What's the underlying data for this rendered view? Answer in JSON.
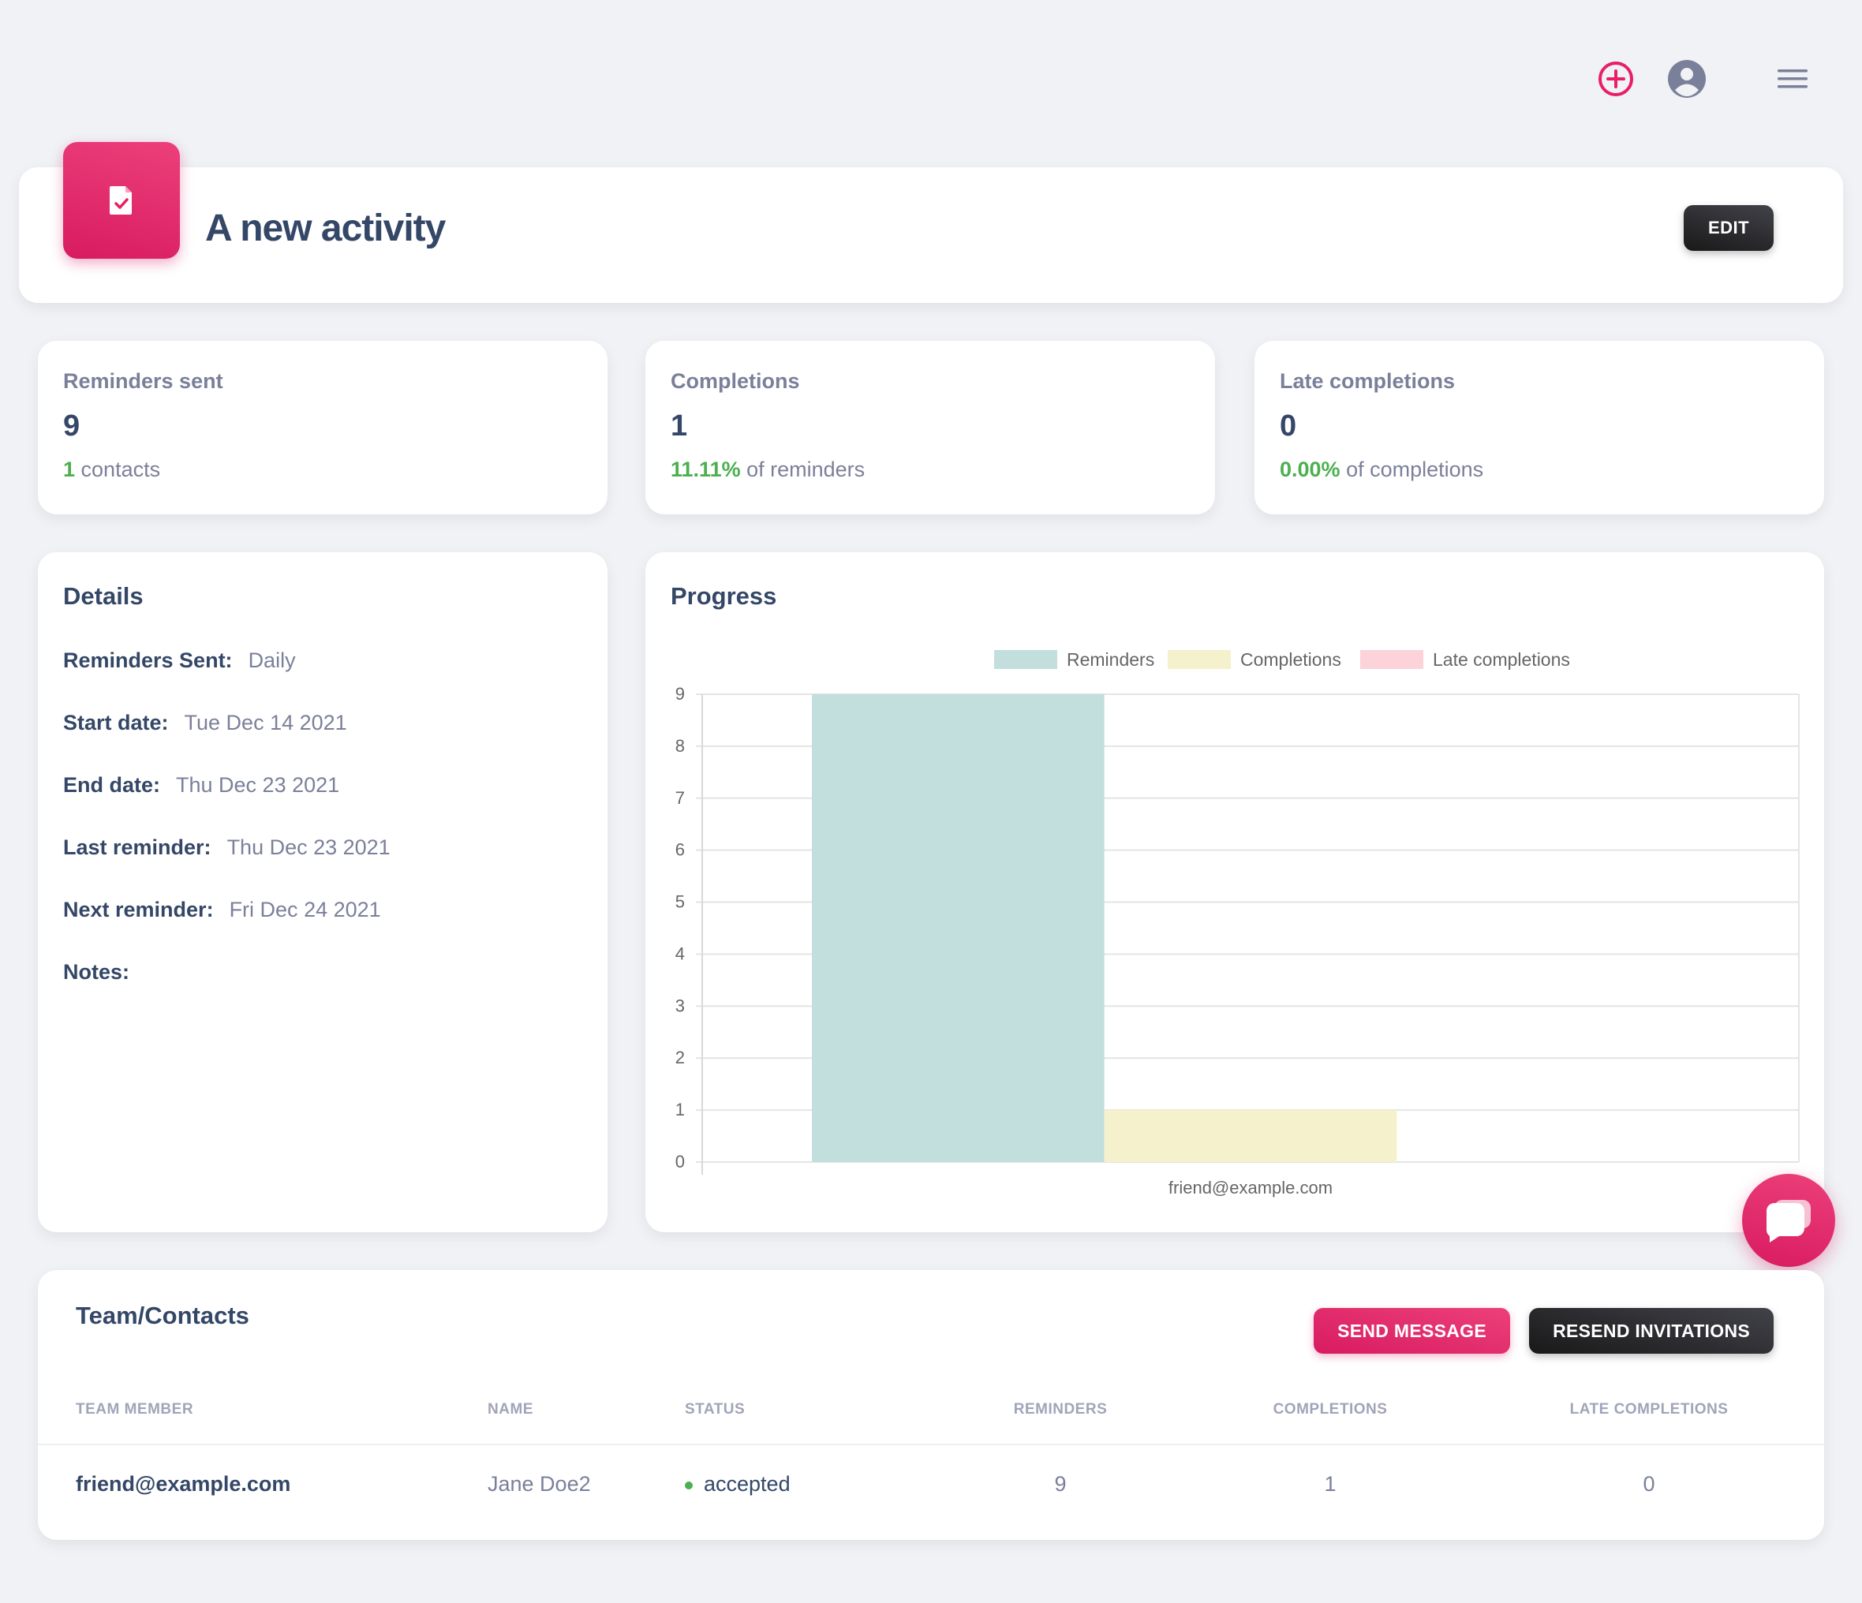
{
  "topbar": {
    "add_icon": "plus-circle-icon",
    "user_icon": "user-circle-icon",
    "menu_icon": "hamburger-menu-icon"
  },
  "header": {
    "icon": "file-check-icon",
    "title": "A new activity",
    "edit_label": "EDIT"
  },
  "stats": [
    {
      "label": "Reminders sent",
      "value": "9",
      "sub_highlight": "1",
      "sub_text": " contacts"
    },
    {
      "label": "Completions",
      "value": "1",
      "sub_highlight": "11.11%",
      "sub_text": " of reminders"
    },
    {
      "label": "Late completions",
      "value": "0",
      "sub_highlight": "0.00%",
      "sub_text": " of completions"
    }
  ],
  "details": {
    "title": "Details",
    "rows": [
      {
        "key": "Reminders Sent:",
        "value": "Daily"
      },
      {
        "key": "Start date:",
        "value": "Tue Dec 14 2021"
      },
      {
        "key": "End date:",
        "value": "Thu Dec 23 2021"
      },
      {
        "key": "Last reminder:",
        "value": "Thu Dec 23 2021"
      },
      {
        "key": "Next reminder:",
        "value": "Fri Dec 24 2021"
      },
      {
        "key": "Notes:",
        "value": ""
      }
    ]
  },
  "progress": {
    "title": "Progress"
  },
  "chart_data": {
    "type": "bar",
    "title": "",
    "categories": [
      "friend@example.com"
    ],
    "series": [
      {
        "name": "Reminders",
        "color": "#c2dfde",
        "values": [
          9
        ]
      },
      {
        "name": "Completions",
        "color": "#f5f1cc",
        "values": [
          1
        ]
      },
      {
        "name": "Late completions",
        "color": "#fcd3d9",
        "values": [
          0
        ]
      }
    ],
    "ylim": [
      0,
      9
    ],
    "yticks": [
      "0",
      "1",
      "2",
      "3",
      "4",
      "5",
      "6",
      "7",
      "8",
      "9"
    ],
    "grid": true,
    "legend": "top"
  },
  "chat": {
    "icon": "chat-bubble-icon"
  },
  "team": {
    "title": "Team/Contacts",
    "send_label": "SEND MESSAGE",
    "resend_label": "RESEND INVITATIONS",
    "columns": [
      "TEAM MEMBER",
      "NAME",
      "STATUS",
      "REMINDERS",
      "COMPLETIONS",
      "LATE COMPLETIONS"
    ],
    "rows": [
      {
        "member": "friend@example.com",
        "name": "Jane Doe2",
        "status": "accepted",
        "reminders": "9",
        "completions": "1",
        "late": "0"
      }
    ]
  },
  "colors": {
    "pink": "#d81b60",
    "dark": "#191919",
    "green": "#4caf50",
    "text": "#344767",
    "muted": "#7b809a"
  }
}
